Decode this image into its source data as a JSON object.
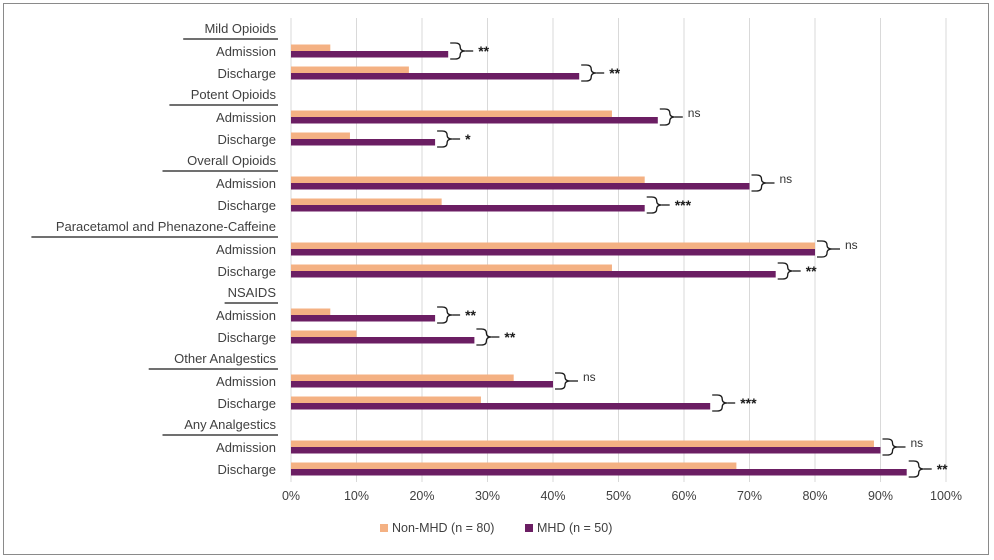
{
  "chart_data": {
    "type": "bar",
    "orientation": "horizontal",
    "xlim": [
      0,
      100
    ],
    "x_ticks": [
      "0%",
      "10%",
      "20%",
      "30%",
      "40%",
      "50%",
      "60%",
      "70%",
      "80%",
      "90%",
      "100%"
    ],
    "grid": "vertical",
    "legend_position": "bottom-center",
    "colors": {
      "non_mhd": "#F4B183",
      "mhd": "#6B1E63",
      "grid": "#d9d9d9"
    },
    "series": [
      {
        "name": "Non-MHD (n = 80)",
        "key": "non_mhd"
      },
      {
        "name": "MHD (n = 50)",
        "key": "mhd"
      }
    ],
    "groups": [
      {
        "label": "Mild Opioids",
        "rows": [
          {
            "label": "Admission",
            "non_mhd": 6,
            "mhd": 24,
            "sig": "**"
          },
          {
            "label": "Discharge",
            "non_mhd": 18,
            "mhd": 44,
            "sig": "**"
          }
        ]
      },
      {
        "label": "Potent Opioids",
        "rows": [
          {
            "label": "Admission",
            "non_mhd": 49,
            "mhd": 56,
            "sig": "ns"
          },
          {
            "label": "Discharge",
            "non_mhd": 9,
            "mhd": 22,
            "sig": "*"
          }
        ]
      },
      {
        "label": "Overall Opioids",
        "rows": [
          {
            "label": "Admission",
            "non_mhd": 54,
            "mhd": 70,
            "sig": "ns"
          },
          {
            "label": "Discharge",
            "non_mhd": 23,
            "mhd": 54,
            "sig": "***"
          }
        ]
      },
      {
        "label": "Paracetamol and Phenazone-Caffeine",
        "rows": [
          {
            "label": "Admission",
            "non_mhd": 80,
            "mhd": 80,
            "sig": "ns"
          },
          {
            "label": "Discharge",
            "non_mhd": 49,
            "mhd": 74,
            "sig": "**"
          }
        ]
      },
      {
        "label": "NSAIDS",
        "rows": [
          {
            "label": "Admission",
            "non_mhd": 6,
            "mhd": 22,
            "sig": "**"
          },
          {
            "label": "Discharge",
            "non_mhd": 10,
            "mhd": 28,
            "sig": "**"
          }
        ]
      },
      {
        "label": "Other Analgestics",
        "rows": [
          {
            "label": "Admission",
            "non_mhd": 34,
            "mhd": 40,
            "sig": "ns"
          },
          {
            "label": "Discharge",
            "non_mhd": 29,
            "mhd": 64,
            "sig": "***"
          }
        ]
      },
      {
        "label": "Any Analgestics",
        "rows": [
          {
            "label": "Admission",
            "non_mhd": 89,
            "mhd": 90,
            "sig": "ns"
          },
          {
            "label": "Discharge",
            "non_mhd": 68,
            "mhd": 94,
            "sig": "**"
          }
        ]
      }
    ]
  }
}
